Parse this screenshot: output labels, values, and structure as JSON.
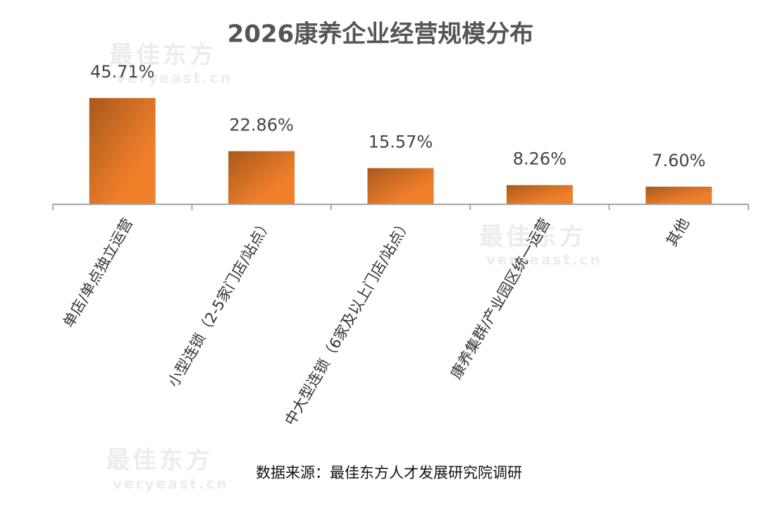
{
  "chart_data": {
    "type": "bar",
    "title": "2026康养企业经营规模分布",
    "categories": [
      "单店/单点独立运营",
      "小型连锁（2-5家门店/站点）",
      "中大型连锁（6家及以上门店/站点）",
      "康养集群/产业园区统一运营",
      "其他"
    ],
    "values": [
      45.71,
      22.86,
      15.57,
      8.26,
      7.6
    ],
    "value_labels": [
      "45.71%",
      "22.86%",
      "15.57%",
      "8.26%",
      "7.60%"
    ],
    "color": "#f07f2a",
    "ylim": [
      0,
      50
    ],
    "source": "数据来源：最佳东方人才发展研究院调研",
    "watermark": {
      "text": "最佳东方",
      "url": "veryeast.cn"
    }
  }
}
